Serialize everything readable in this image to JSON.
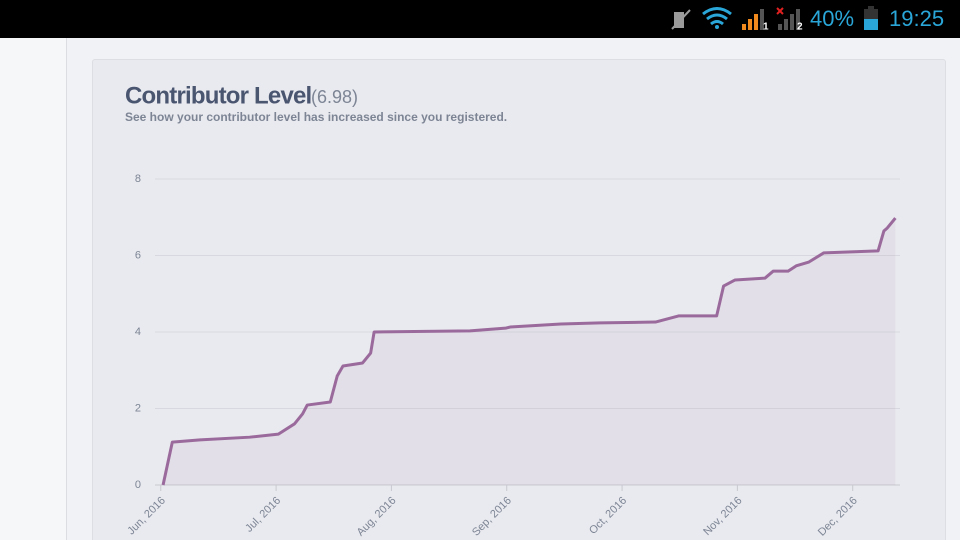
{
  "status_bar": {
    "sim1": "1",
    "sim2": "2",
    "battery": "40%",
    "time": "19:25"
  },
  "chart_data": {
    "type": "line",
    "title": "Contributor Level",
    "title_value": "(6.98)",
    "subtitle": "See how your contributor level has increased since you registered.",
    "x": [
      0.02,
      0.1,
      0.34,
      0.77,
      1.02,
      1.16,
      1.23,
      1.27,
      1.47,
      1.53,
      1.58,
      1.75,
      1.82,
      1.85,
      2.68,
      2.99,
      3.03,
      3.47,
      3.81,
      4.29,
      4.49,
      4.82,
      4.88,
      4.98,
      5.24,
      5.31,
      5.44,
      5.51,
      5.62,
      5.75,
      6.22,
      6.27,
      6.3,
      6.37
    ],
    "series": [
      {
        "name": "Contributor Level",
        "color": "#9b6a9c",
        "values": [
          0,
          1.12,
          1.18,
          1.25,
          1.33,
          1.6,
          1.86,
          2.09,
          2.17,
          2.85,
          3.11,
          3.19,
          3.45,
          4.0,
          4.03,
          4.1,
          4.13,
          4.21,
          4.24,
          4.26,
          4.42,
          4.42,
          5.2,
          5.36,
          5.41,
          5.59,
          5.59,
          5.73,
          5.83,
          6.07,
          6.12,
          6.64,
          6.72,
          6.98
        ]
      }
    ],
    "xlim": [
      -0.05,
      6.41
    ],
    "xticks": [
      {
        "value": 0,
        "label": "Jun, 2016"
      },
      {
        "value": 1,
        "label": "Jul, 2016"
      },
      {
        "value": 2,
        "label": "Aug, 2016"
      },
      {
        "value": 3,
        "label": "Sep, 2016"
      },
      {
        "value": 4,
        "label": "Oct, 2016"
      },
      {
        "value": 5,
        "label": "Nov, 2016"
      },
      {
        "value": 6,
        "label": "Dec, 2016"
      }
    ],
    "ylim": [
      0,
      8
    ],
    "yticks": [
      0,
      2,
      4,
      6,
      8
    ],
    "grid": true,
    "area": true
  }
}
